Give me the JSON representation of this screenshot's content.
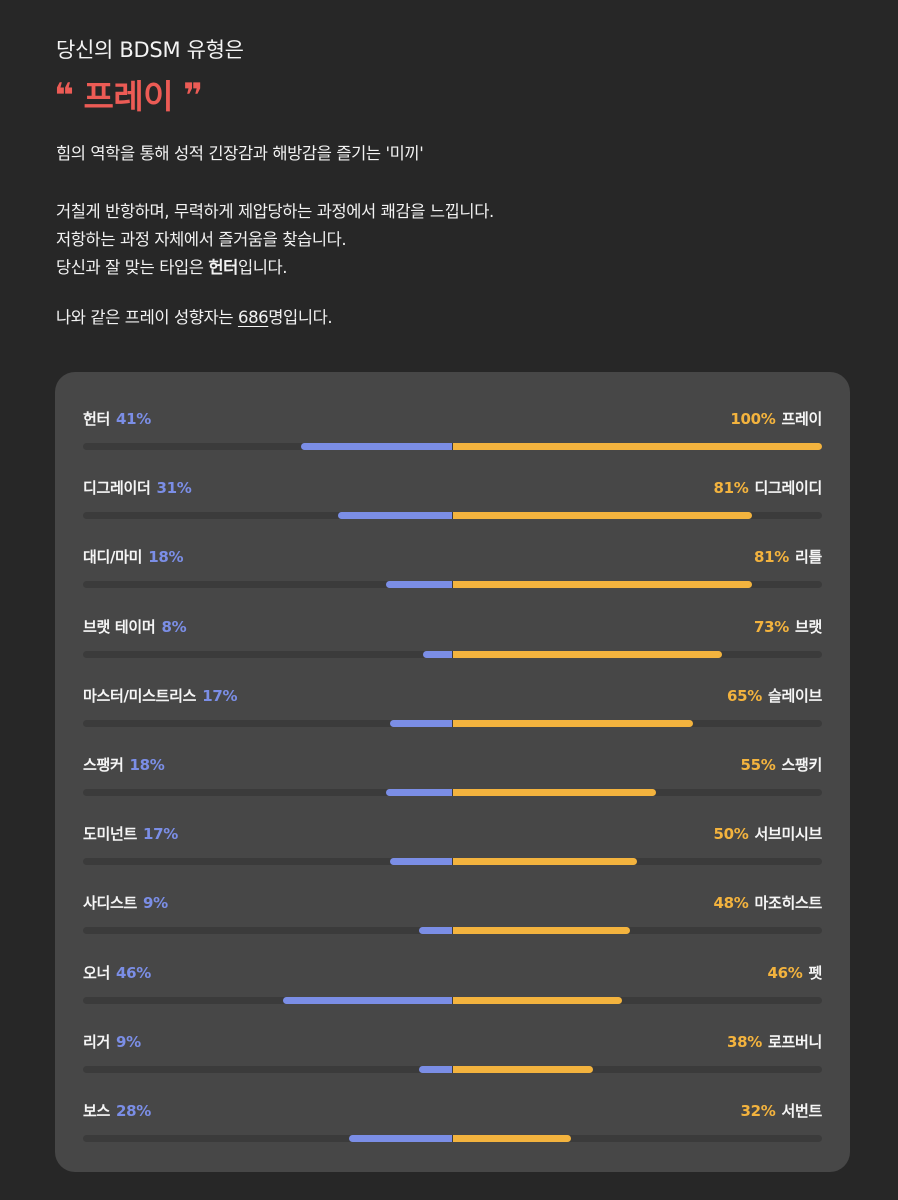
{
  "header": {
    "subtitle": "당신의 BDSM 유형은",
    "open_quote": "❝",
    "type_name": "프레이",
    "close_quote": "❞",
    "accent_color": "#ec5b55"
  },
  "description": {
    "line1": "힘의 역학을 통해 성적 긴장감과 해방감을 즐기는 '미끼'",
    "line2": "거칠게 반항하며, 무력하게 제압당하는 과정에서 쾌감을 느낍니다.",
    "line3": "저항하는 과정 자체에서 즐거움을 찾습니다.",
    "line4_prefix": "당신과 잘 맞는 타입은 ",
    "line4_match": "헌터",
    "line4_suffix": "입니다.",
    "line5_prefix": "나와 같은 프레이 성향자는 ",
    "line5_count": "686",
    "line5_suffix": "명입니다."
  },
  "colors": {
    "left_bar": "#7b8ee6",
    "right_bar": "#f3b33e",
    "track": "#3b3b3b",
    "card": "#474747"
  },
  "scores": [
    {
      "left_label": "헌터",
      "left_pct": "41%",
      "left_value": 41,
      "right_pct": "100%",
      "right_label": "프레이",
      "right_value": 100
    },
    {
      "left_label": "디그레이더",
      "left_pct": "31%",
      "left_value": 31,
      "right_pct": "81%",
      "right_label": "디그레이디",
      "right_value": 81
    },
    {
      "left_label": "대디/마미",
      "left_pct": "18%",
      "left_value": 18,
      "right_pct": "81%",
      "right_label": "리틀",
      "right_value": 81
    },
    {
      "left_label": "브랫 테이머",
      "left_pct": "8%",
      "left_value": 8,
      "right_pct": "73%",
      "right_label": "브랫",
      "right_value": 73
    },
    {
      "left_label": "마스터/미스트리스",
      "left_pct": "17%",
      "left_value": 17,
      "right_pct": "65%",
      "right_label": "슬레이브",
      "right_value": 65
    },
    {
      "left_label": "스팽커",
      "left_pct": "18%",
      "left_value": 18,
      "right_pct": "55%",
      "right_label": "스팽키",
      "right_value": 55
    },
    {
      "left_label": "도미넌트",
      "left_pct": "17%",
      "left_value": 17,
      "right_pct": "50%",
      "right_label": "서브미시브",
      "right_value": 50
    },
    {
      "left_label": "사디스트",
      "left_pct": "9%",
      "left_value": 9,
      "right_pct": "48%",
      "right_label": "마조히스트",
      "right_value": 48
    },
    {
      "left_label": "오너",
      "left_pct": "46%",
      "left_value": 46,
      "right_pct": "46%",
      "right_label": "펫",
      "right_value": 46
    },
    {
      "left_label": "리거",
      "left_pct": "9%",
      "left_value": 9,
      "right_pct": "38%",
      "right_label": "로프버니",
      "right_value": 38
    },
    {
      "left_label": "보스",
      "left_pct": "28%",
      "left_value": 28,
      "right_pct": "32%",
      "right_label": "서번트",
      "right_value": 32
    }
  ]
}
